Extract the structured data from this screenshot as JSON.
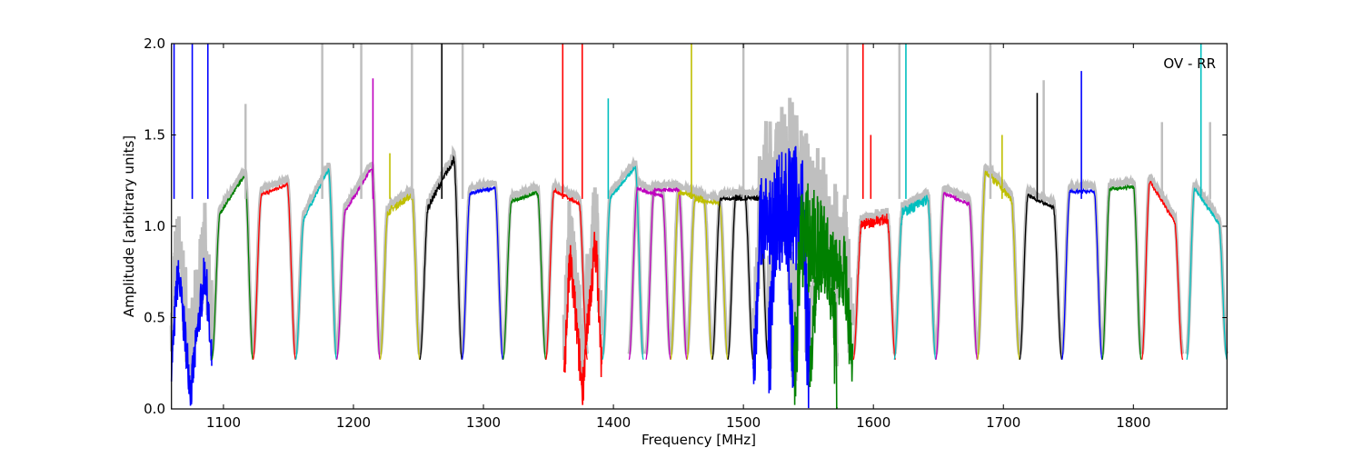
{
  "chart_data": {
    "type": "line",
    "title": "",
    "annotation": "OV - RR",
    "xlabel": "Frequency [MHz]",
    "ylabel": "Amplitude [arbitrary units]",
    "xlim": [
      1060,
      1872
    ],
    "ylim": [
      0.0,
      2.0
    ],
    "xticks": [
      "1100",
      "1200",
      "1300",
      "1400",
      "1500",
      "1600",
      "1700",
      "1800"
    ],
    "xtick_values": [
      1100,
      1200,
      1300,
      1400,
      1500,
      1600,
      1700,
      1800
    ],
    "yticks": [
      "0.0",
      "0.5",
      "1.0",
      "1.5",
      "2.0"
    ],
    "ytick_values": [
      0.0,
      0.5,
      1.0,
      1.5,
      2.0
    ],
    "grid": false,
    "envelope_color": "#bfbfbf",
    "bands": [
      {
        "start": 1060,
        "end": 1091,
        "level": [
          1.05,
          0.95
        ],
        "color": "#0000ff",
        "noise": 0.12,
        "dip": [
          1075,
          0.1
        ]
      },
      {
        "start": 1091,
        "end": 1122.7,
        "level": [
          1.0,
          1.35
        ],
        "color": "#008000",
        "noise": 0.01
      },
      {
        "start": 1122.7,
        "end": 1155.5,
        "level": [
          1.15,
          1.25
        ],
        "color": "#ff0000",
        "noise": 0.01
      },
      {
        "start": 1155.5,
        "end": 1187,
        "level": [
          0.95,
          1.4
        ],
        "color": "#00bfbf",
        "noise": 0.01
      },
      {
        "start": 1187,
        "end": 1220.5,
        "level": [
          1.0,
          1.4
        ],
        "color": "#bf00bf",
        "noise": 0.01
      },
      {
        "start": 1220.5,
        "end": 1251,
        "level": [
          1.05,
          1.2
        ],
        "color": "#bfbf00",
        "noise": 0.02
      },
      {
        "start": 1251,
        "end": 1283.5,
        "level": [
          1.02,
          1.45
        ],
        "color": "#000000",
        "noise": 0.02
      },
      {
        "start": 1283.5,
        "end": 1315,
        "level": [
          1.17,
          1.22
        ],
        "color": "#0000ff",
        "noise": 0.01
      },
      {
        "start": 1315,
        "end": 1348,
        "level": [
          1.12,
          1.2
        ],
        "color": "#008000",
        "noise": 0.01
      },
      {
        "start": 1348,
        "end": 1380,
        "level": [
          1.22,
          1.1
        ],
        "color": "#ff0000",
        "noise": 0.01
      },
      {
        "start": 1362,
        "end": 1391,
        "level": [
          1.2,
          1.25
        ],
        "color": "#ff0000",
        "noise": 0.12,
        "dip": [
          1376,
          0.1
        ]
      },
      {
        "start": 1391.5,
        "end": 1423,
        "level": [
          1.1,
          1.38
        ],
        "color": "#00bfbf",
        "noise": 0.01
      },
      {
        "start": 1412,
        "end": 1444,
        "level": [
          1.22,
          1.15
        ],
        "color": "#bf00bf",
        "noise": 0.01
      },
      {
        "start": 1425,
        "end": 1456.5,
        "level": [
          1.2,
          1.2
        ],
        "color": "#bf00bf",
        "noise": 0.01
      },
      {
        "start": 1444,
        "end": 1476,
        "level": [
          1.2,
          1.13
        ],
        "color": "#bfbf00",
        "noise": 0.015
      },
      {
        "start": 1456.5,
        "end": 1488,
        "level": [
          1.15,
          1.12
        ],
        "color": "#bfbf00",
        "noise": 0.01
      },
      {
        "start": 1476,
        "end": 1507.5,
        "level": [
          1.15,
          1.15
        ],
        "color": "#000000",
        "noise": 0.01
      },
      {
        "start": 1488,
        "end": 1519,
        "level": [
          1.16,
          1.15
        ],
        "color": "#000000",
        "noise": 0.015
      },
      {
        "start": 1507.5,
        "end": 1539,
        "level": [
          1.02,
          1.05
        ],
        "color": "#0000ff",
        "noise": 0.25
      },
      {
        "start": 1519,
        "end": 1551,
        "level": [
          1.1,
          1.1
        ],
        "color": "#0000ff",
        "noise": 0.35
      },
      {
        "start": 1539,
        "end": 1572,
        "level": [
          1.0,
          0.8
        ],
        "color": "#008000",
        "noise": 0.3
      },
      {
        "start": 1551,
        "end": 1584,
        "level": [
          0.8,
          0.75
        ],
        "color": "#008000",
        "noise": 0.2
      },
      {
        "start": 1584.5,
        "end": 1617,
        "level": [
          1.0,
          1.05
        ],
        "color": "#ff0000",
        "noise": 0.03
      },
      {
        "start": 1616,
        "end": 1648,
        "level": [
          1.05,
          1.17
        ],
        "color": "#00bfbf",
        "noise": 0.03
      },
      {
        "start": 1648,
        "end": 1680,
        "level": [
          1.2,
          1.1
        ],
        "color": "#bf00bf",
        "noise": 0.01
      },
      {
        "start": 1680,
        "end": 1712.5,
        "level": [
          1.35,
          1.1
        ],
        "color": "#bfbf00",
        "noise": 0.02
      },
      {
        "start": 1712.5,
        "end": 1745,
        "level": [
          1.19,
          1.08
        ],
        "color": "#000000",
        "noise": 0.01
      },
      {
        "start": 1745,
        "end": 1776,
        "level": [
          1.19,
          1.19
        ],
        "color": "#0000ff",
        "noise": 0.01
      },
      {
        "start": 1776,
        "end": 1806,
        "level": [
          1.2,
          1.22
        ],
        "color": "#008000",
        "noise": 0.01
      },
      {
        "start": 1806.5,
        "end": 1838,
        "level": [
          1.32,
          0.95
        ],
        "color": "#ff0000",
        "noise": 0.01
      },
      {
        "start": 1841,
        "end": 1872,
        "level": [
          1.27,
          0.95
        ],
        "color": "#00bfbf",
        "noise": 0.01
      }
    ],
    "spikes": [
      {
        "x": 1062,
        "y": 2.0,
        "color": "#0000ff"
      },
      {
        "x": 1076,
        "y": 2.0,
        "color": "#0000ff"
      },
      {
        "x": 1088,
        "y": 2.0,
        "color": "#0000ff"
      },
      {
        "x": 1117,
        "y": 1.67,
        "color": "#bfbfbf"
      },
      {
        "x": 1176,
        "y": 2.0,
        "color": "#bfbfbf"
      },
      {
        "x": 1206,
        "y": 2.0,
        "color": "#bfbfbf"
      },
      {
        "x": 1215,
        "y": 1.81,
        "color": "#bf00bf"
      },
      {
        "x": 1228,
        "y": 1.4,
        "color": "#bfbf00"
      },
      {
        "x": 1245,
        "y": 2.0,
        "color": "#bfbfbf"
      },
      {
        "x": 1268,
        "y": 2.0,
        "color": "#000000"
      },
      {
        "x": 1284,
        "y": 2.0,
        "color": "#bfbfbf"
      },
      {
        "x": 1361,
        "y": 2.0,
        "color": "#ff0000"
      },
      {
        "x": 1376,
        "y": 2.0,
        "color": "#ff0000"
      },
      {
        "x": 1396,
        "y": 1.7,
        "color": "#00bfbf"
      },
      {
        "x": 1460,
        "y": 2.0,
        "color": "#bfbf00"
      },
      {
        "x": 1500,
        "y": 1.55,
        "color": "#000000"
      },
      {
        "x": 1500,
        "y": 2.0,
        "color": "#bfbfbf"
      },
      {
        "x": 1580,
        "y": 2.0,
        "color": "#bfbfbf"
      },
      {
        "x": 1592,
        "y": 2.0,
        "color": "#ff0000"
      },
      {
        "x": 1598,
        "y": 1.5,
        "color": "#ff0000"
      },
      {
        "x": 1625,
        "y": 2.0,
        "color": "#00bfbf"
      },
      {
        "x": 1620,
        "y": 2.0,
        "color": "#bfbfbf"
      },
      {
        "x": 1690,
        "y": 2.0,
        "color": "#bfbfbf"
      },
      {
        "x": 1699,
        "y": 1.5,
        "color": "#bfbf00"
      },
      {
        "x": 1726,
        "y": 1.73,
        "color": "#000000"
      },
      {
        "x": 1731,
        "y": 1.8,
        "color": "#bfbfbf"
      },
      {
        "x": 1760,
        "y": 1.85,
        "color": "#0000ff"
      },
      {
        "x": 1822,
        "y": 1.57,
        "color": "#bfbfbf"
      },
      {
        "x": 1852,
        "y": 2.0,
        "color": "#00bfbf"
      },
      {
        "x": 1859,
        "y": 1.57,
        "color": "#bfbfbf"
      }
    ]
  }
}
